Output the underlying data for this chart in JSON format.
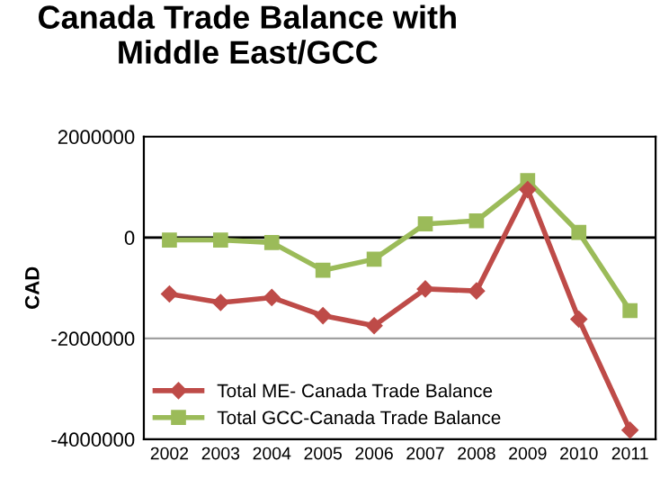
{
  "chart_data": {
    "type": "line",
    "title": "Canada Trade Balance with\nMiddle East/GCC",
    "ylabel": "CAD",
    "categories": [
      "2002",
      "2003",
      "2004",
      "2005",
      "2006",
      "2007",
      "2008",
      "2009",
      "2010",
      "2011"
    ],
    "series": [
      {
        "name": "Total ME- Canada Trade Balance",
        "color": "#be4b48",
        "marker": "diamond",
        "values": [
          -1120000,
          -1290000,
          -1190000,
          -1550000,
          -1750000,
          -1020000,
          -1060000,
          950000,
          -1620000,
          -3820000
        ]
      },
      {
        "name": "Total GCC-Canada Trade Balance",
        "color": "#9bbb59",
        "marker": "square",
        "values": [
          -50000,
          -50000,
          -100000,
          -650000,
          -430000,
          270000,
          330000,
          1130000,
          100000,
          -1450000
        ]
      }
    ],
    "ylim": [
      -4000000,
      2000000
    ],
    "yticks": [
      -4000000,
      -2000000,
      0,
      2000000
    ],
    "grid": "y",
    "legend": "bottom left"
  }
}
